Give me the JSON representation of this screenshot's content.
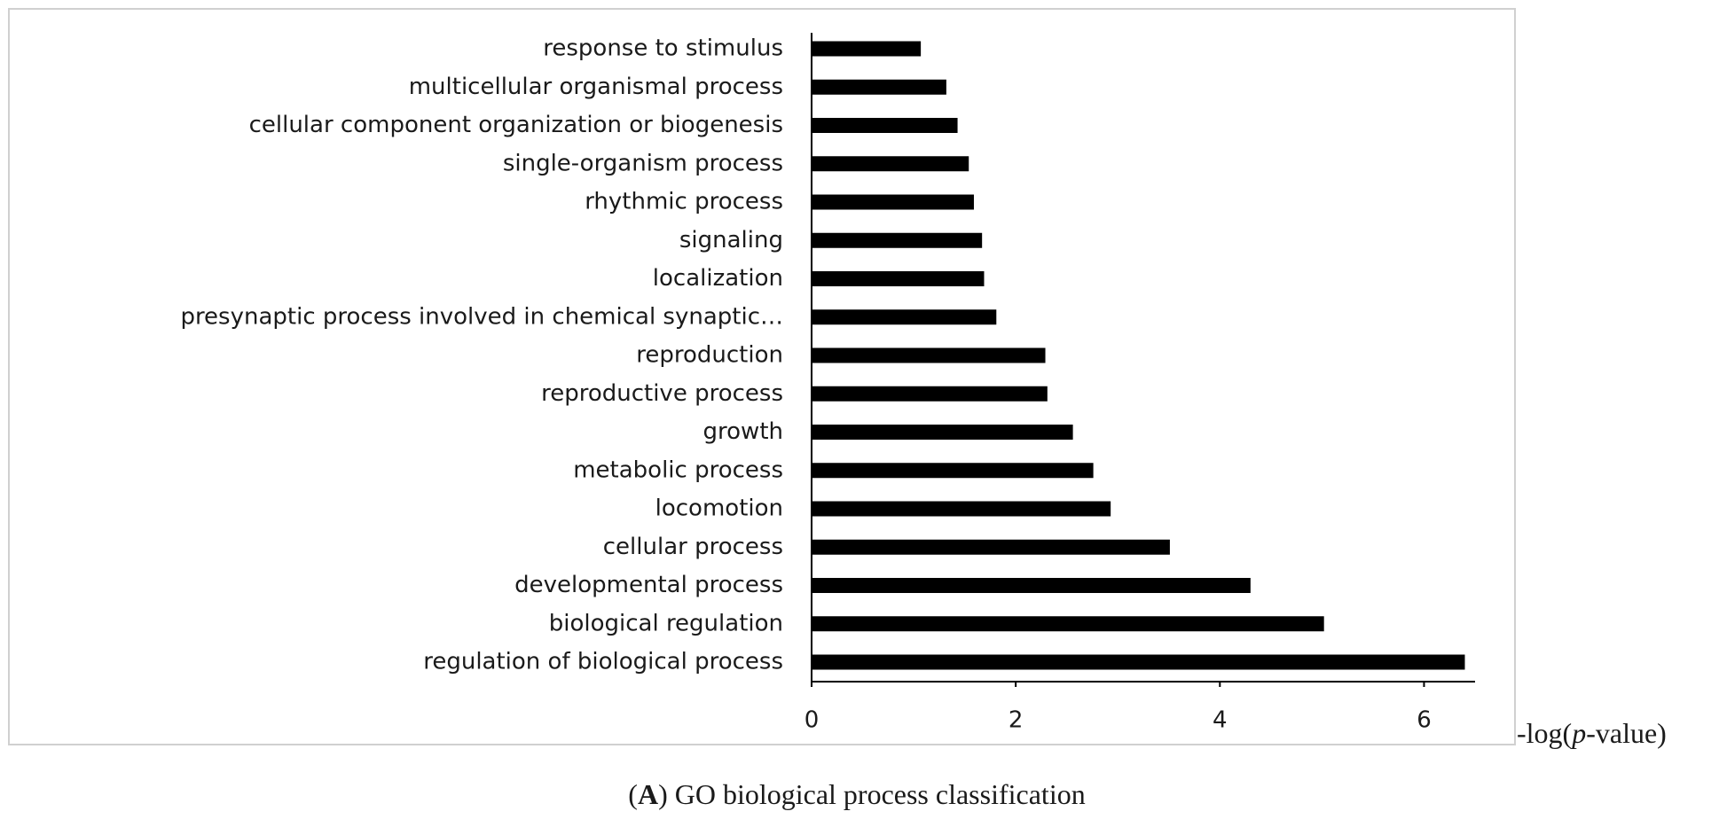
{
  "chart_data": {
    "type": "hbar",
    "categories": [
      "response to stimulus",
      "multicellular organismal process",
      "cellular component organization or biogenesis",
      "single-organism process",
      "rhythmic process",
      "signaling",
      "localization",
      "presynaptic process involved in chemical synaptic…",
      "reproduction",
      "reproductive process",
      "growth",
      "metabolic process",
      "locomotion",
      "cellular process",
      "developmental process",
      "biological regulation",
      "regulation of biological process"
    ],
    "values": [
      1.07,
      1.32,
      1.43,
      1.54,
      1.59,
      1.67,
      1.69,
      1.81,
      2.29,
      2.31,
      2.56,
      2.76,
      2.93,
      3.51,
      4.3,
      5.02,
      6.4
    ],
    "color": "#000000",
    "xlim": [
      0,
      6.5
    ],
    "xticks": [
      0,
      2,
      4,
      6
    ],
    "x_label_parts": [
      "-log(",
      "p",
      "-value)"
    ],
    "caption_parts": [
      "(",
      "A",
      ") GO biological process classification"
    ]
  }
}
